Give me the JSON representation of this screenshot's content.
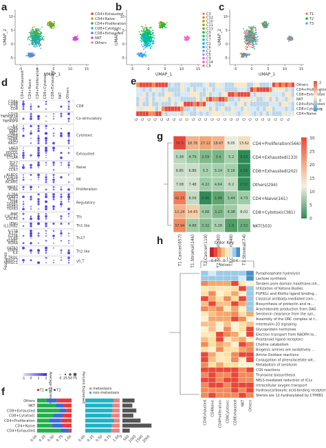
{
  "panels": {
    "a": {
      "label": "a",
      "xlabel": "UMAP_1",
      "ylabel": "UMAP_2",
      "xticks": [
        "-5",
        "0",
        "5",
        "10",
        "15"
      ],
      "yticks": [
        "10",
        "5",
        "0",
        "-5"
      ],
      "legend": [
        {
          "text": "CD4+Exhausted",
          "color": "#e8383b"
        },
        {
          "text": "CD4+Naive",
          "color": "#b5a000"
        },
        {
          "text": "CD4+Proliferation",
          "color": "#22b04a"
        },
        {
          "text": "CD8+Cytotoxic",
          "color": "#20b3c4"
        },
        {
          "text": "CD8+Exhausted",
          "color": "#5a7bf0"
        },
        {
          "text": "NKT",
          "color": "#d04be0"
        },
        {
          "text": "Others",
          "color": "#ff7bb0"
        }
      ]
    },
    "b": {
      "label": "b",
      "xlabel": "UMAP_1",
      "ylabel": "UMAP_2",
      "xticks": [
        "-5",
        "0",
        "5",
        "10",
        "15"
      ],
      "yticks": [
        "10",
        "5",
        "0",
        "-5"
      ],
      "legend": [
        {
          "text": "C3",
          "color": "#f8766d"
        },
        {
          "text": "C12",
          "color": "#e58700"
        },
        {
          "text": "C10",
          "color": "#c99800"
        },
        {
          "text": "C11",
          "color": "#a3a500"
        },
        {
          "text": "C13",
          "color": "#6bb100"
        },
        {
          "text": "C0",
          "color": "#00ba38"
        },
        {
          "text": "C4",
          "color": "#00bf7d"
        },
        {
          "text": "C7",
          "color": "#00c0af"
        },
        {
          "text": "C2",
          "color": "#00bcd8"
        },
        {
          "text": "C6",
          "color": "#00b0f6"
        },
        {
          "text": "C1",
          "color": "#619cff"
        },
        {
          "text": "C5",
          "color": "#b983ff"
        },
        {
          "text": "C9",
          "color": "#e76bf3"
        },
        {
          "text": "C14",
          "color": "#fd61d1"
        },
        {
          "text": "C8",
          "color": "#ff67a4"
        }
      ]
    },
    "c": {
      "label": "c",
      "xlabel": "UMAP_1",
      "ylabel": "UMAP_2",
      "xticks": [
        "-5",
        "0",
        "5",
        "10",
        "15"
      ],
      "yticks": [
        "10",
        "5",
        "0",
        "-5"
      ],
      "legend": [
        {
          "text": "T1",
          "color": "#f8766d"
        },
        {
          "text": "T2",
          "color": "#00ba38"
        },
        {
          "text": "T3",
          "color": "#619cff"
        }
      ]
    },
    "d": {
      "label": "d",
      "ylabel": "Features",
      "columns": [
        "CD4+Exhausted",
        "CD4+Naive",
        "CD4+Proliferation",
        "CD8+Cytotoxic",
        "CD8+Exhausted",
        "NKT",
        "Others"
      ],
      "legend_expr": "Average Expression",
      "legend_pct": "Percent Expressed",
      "legend_ticks": [
        "-1",
        "0",
        "1",
        "2"
      ],
      "pct_ticks": [
        "0",
        "25",
        "50",
        "75"
      ],
      "groups": [
        {
          "name": "CD8",
          "genes": [
            "CD8A",
            "CD8B",
            "IL7R",
            "CD4"
          ]
        },
        {
          "name": "Co-stimulatory",
          "genes": [
            "CD28",
            "TNFRSF14",
            "ICOS",
            "TNFRSF9"
          ]
        },
        {
          "name": "Cytotoxic",
          "genes": [
            "IL2",
            "GZMA",
            "GNLY",
            "PRF1",
            "GZMB",
            "GZMK",
            "IFNG",
            "NKG7"
          ]
        },
        {
          "name": "Exhausted",
          "genes": [
            "LAG3",
            "TIGIT",
            "PDCD1",
            "HAVCR2",
            "CTLA4"
          ]
        },
        {
          "name": "Naive",
          "genes": [
            "TCF7",
            "SELL",
            "LEF1",
            "CCR7"
          ]
        },
        {
          "name": "NK",
          "genes": [
            "KLRD1",
            "FCGR3A",
            "KLRC1",
            "NCAM1"
          ]
        },
        {
          "name": "Proliferation",
          "genes": [
            "MKI67",
            "PCNA"
          ]
        },
        {
          "name": "Regulatory",
          "genes": [
            "IL2RA",
            "FOXP3",
            "IKZF2",
            "IL4R",
            "TGFB1",
            "TGFB2",
            "TGFB3"
          ]
        },
        {
          "name": "Tfh",
          "genes": [
            "MAF",
            "CXCL13",
            "CXCR5"
          ]
        },
        {
          "name": "Th1 like",
          "genes": [
            "IFNG",
            "IL12RB2"
          ]
        },
        {
          "name": "Th17",
          "genes": [
            "IL17A",
            "IL17F",
            "IL23R",
            "CCR6",
            "KLRB1",
            "RORA"
          ]
        },
        {
          "name": "Th2 like",
          "genes": [
            "GATA3",
            "STAT6",
            "IL4"
          ]
        },
        {
          "name": "γδ_T",
          "genes": [
            "TRDC",
            "TRGC2",
            "TRGC1"
          ]
        }
      ]
    },
    "e": {
      "label": "e",
      "rows": [
        "Others",
        "CD4+Proliferation",
        "CD8+Exhausted",
        "NKT",
        "CD4+Exhausted",
        "CD8+Cytotoxic",
        "CD4+Naive"
      ],
      "scale_ticks": [
        "2",
        "1",
        "0",
        "-1"
      ]
    },
    "f": {
      "label": "f",
      "legend_left": [
        {
          "text": "T1",
          "color": "#e8383b"
        },
        {
          "text": "T2",
          "color": "#22b04a"
        },
        {
          "text": "T3",
          "color": "#3b6bd6"
        }
      ],
      "legend_mid": [
        {
          "text": "metastasis",
          "color": "#f08080"
        },
        {
          "text": "non-metastasis",
          "color": "#20b3c4"
        }
      ],
      "rows": [
        "Others",
        "NKT",
        "CD8+Exhausted",
        "CD8+Cytotoxic",
        "CD4+Proliferation",
        "CD4+Naive",
        "CD4+Exhausted"
      ],
      "ticks_prop": [
        "0.00",
        "0.25",
        "0.50",
        "0.75",
        "1.00"
      ],
      "ticks_count": [
        "0",
        "500",
        "1000",
        "1500",
        "2000"
      ]
    },
    "g": {
      "label": "g",
      "rows": [
        "CD4+Proliferation(566)",
        "CD4+Exhausted(133)",
        "CD8+Exhausted(202)",
        "Others(294)",
        "CD4+Naive(161)",
        "CD8+Cytotoxic(381)",
        "NKT(503)"
      ],
      "cols": [
        "T1.Cancer(657)",
        "T1.Stromal(146)",
        "T2.Cancer(119)",
        "T2.Stromal(340)",
        "T3.Cancer(348)",
        "T3.Stromal(74)"
      ],
      "values": [
        [
          "50.5",
          "18.78",
          "27.12",
          "18.67",
          "8.05",
          "13.62"
        ],
        [
          "5.38",
          "4.79",
          "3.59",
          "3.4",
          "5.2",
          "0.52"
        ],
        [
          "6.85",
          "6.86",
          "5.3",
          "5.14",
          "5.16",
          "0.55"
        ],
        [
          "7.08",
          "7.48",
          "4.22",
          "4.64",
          "6.2",
          "0.52"
        ],
        [
          "42.15",
          "6.09",
          "0.86",
          "1.96",
          "3.44",
          "4.73"
        ],
        [
          "11.24",
          "14.43",
          "4.88",
          "3.23",
          "4.38",
          "8.02"
        ],
        [
          "37.94",
          "4.88",
          "3.32",
          "5.28",
          "1.9",
          "2.52"
        ]
      ],
      "colors": [
        [
          "#e8483a",
          "#f2b28a",
          "#f1a774",
          "#f2b28a",
          "#e8eddf",
          "#f1e0c0"
        ],
        [
          "#b9d7bd",
          "#9ccba4",
          "#7fba8a",
          "#79b585",
          "#a7d1ae",
          "#2e8b57"
        ],
        [
          "#c9ddc8",
          "#c9ddc8",
          "#a7d1ae",
          "#a3cfab",
          "#a5d0ad",
          "#2e8b57"
        ],
        [
          "#cfe0cc",
          "#d1e2cf",
          "#9fcca6",
          "#a7d1ae",
          "#c3dbc4",
          "#2e8b57"
        ],
        [
          "#ef7d5a",
          "#c3dbc4",
          "#2f8c58",
          "#5aa56c",
          "#93c59c",
          "#9fcca6"
        ],
        [
          "#f2b28a",
          "#f6cda6",
          "#9fcca6",
          "#81bb8c",
          "#9ccba4",
          "#d9e5d4"
        ],
        [
          "#ee8a60",
          "#9fcca6",
          "#86be91",
          "#a7d1ae",
          "#4f9e66",
          "#6db07c"
        ]
      ],
      "scale_ticks": [
        "30",
        "25",
        "20",
        "15",
        "10",
        "5",
        "0"
      ]
    },
    "h": {
      "label": "h",
      "color_key_title": "Color Key",
      "color_key_ticks": [
        "-0.4",
        "0",
        "0.4"
      ],
      "color_key_xlabel": "Value",
      "rows": [
        "Pyrophosphate hydrolysis",
        "Lactose synthesis",
        "Tandem pore domain halothane-inh...",
        "Utilization of Ketone Bodies",
        "FGFR1c and Klotho ligand binding...",
        "Classical antibody-mediated com...",
        "Biosynthesis of protectin and re...",
        "Arachidonate production from DAG",
        "Serotonin clearance from the syn...",
        "Assembly of the ORC complex at t...",
        "Interleukin-33 signaling",
        "Glycoprotein hormones",
        "Electron transport from NADPH to...",
        "Prostanoid ligand receptors",
        "Choline catabolism",
        "Biogenic amines are oxidatively ...",
        "Amine Oxidase reactions",
        "Conjugation of phenylacetate wit...",
        "Metabolism of serotonin",
        "COX reactions",
        "Thyroxine biosynthesis",
        "NELS-mediated reduction of ICLs",
        "Intracellular oxygen transport",
        "Hydroxycarboxylic acid-binding receptors",
        "Sterols are 12-hydroxylated by CYP8B1"
      ],
      "cols": [
        "CD4Exhausted",
        "CD4Naive",
        "CD4Proliferation",
        "CD8Cytotoxic",
        "CD8Exhausted",
        "NKT",
        "Others"
      ]
    }
  }
}
